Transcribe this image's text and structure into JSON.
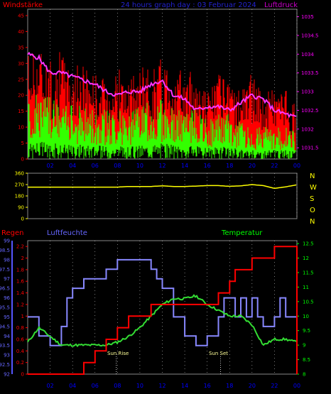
{
  "header": {
    "left_label": "Windstärke",
    "title": "24 hours graph day : 03 Februar 2024",
    "right_label": "Luftdruck"
  },
  "lower": {
    "left_label": "Regen",
    "mid_label": "Luftfeuchte",
    "right_label": "Temperatur",
    "sunrise_label": "Sun Rise",
    "sunset_label": "Sun Set"
  },
  "colors": {
    "wind_gust": "#ff0000",
    "wind_avg": "#33ff00",
    "pressure": "#ff33ff",
    "direction": "#ffff00",
    "rain": "#ff0000",
    "humidity": "#8888ff",
    "temperature": "#33dd33",
    "axis": "#888888",
    "grid": "#cccccc",
    "title": "#2222cc",
    "left_label": "#ff0000",
    "right_label": "#cc00cc",
    "compass_label": "#ffff00",
    "temp_axis_label": "#00ff00",
    "humidity_label": "#6666ff"
  },
  "chart_data": [
    {
      "type": "line",
      "xlabel": "",
      "ylabel": "Windstärke",
      "x_ticks": [
        "02",
        "04",
        "06",
        "08",
        "10",
        "12",
        "14",
        "16",
        "18",
        "20",
        "22",
        "00"
      ],
      "y_left_ticks": [
        "0",
        "5",
        "10",
        "15",
        "20",
        "25",
        "30",
        "35",
        "40",
        "45"
      ],
      "ylim": [
        0,
        47
      ],
      "y_right_ticks": [
        "1031.5",
        "1032",
        "1032.5",
        "1033",
        "1033.5",
        "1034",
        "1034.5",
        "1035"
      ],
      "y2lim": [
        1031.2,
        1035.2
      ],
      "x_hours": [
        0,
        1,
        2,
        3,
        4,
        5,
        6,
        7,
        8,
        9,
        10,
        11,
        12,
        13,
        14,
        15,
        16,
        17,
        18,
        19,
        20,
        21,
        22,
        23,
        24
      ],
      "series": [
        {
          "name": "Windstärke",
          "values": [
            30,
            32,
            27,
            30,
            25,
            27,
            24,
            22,
            26,
            21,
            26,
            25,
            29,
            27,
            23,
            25,
            19,
            24,
            20,
            20,
            24,
            18,
            21,
            19,
            14
          ]
        },
        {
          "name": "",
          "values": [
            14,
            16,
            15,
            14,
            13,
            13,
            13,
            12,
            12,
            11,
            13,
            14,
            15,
            13,
            12,
            12,
            10,
            11,
            11,
            9,
            8,
            8,
            8,
            8,
            7
          ]
        },
        {
          "name": "Luftdruck",
          "values": [
            1034.0,
            1033.9,
            1033.5,
            1033.5,
            1033.4,
            1033.3,
            1033.2,
            1033.0,
            1032.9,
            1033.0,
            1033.0,
            1033.2,
            1033.3,
            1032.9,
            1032.8,
            1032.5,
            1032.6,
            1032.6,
            1032.5,
            1032.7,
            1032.9,
            1032.8,
            1032.5,
            1032.4,
            1032.3
          ]
        }
      ]
    },
    {
      "type": "line",
      "y_left_ticks": [
        "0",
        "90",
        "180",
        "270",
        "360"
      ],
      "ylim": [
        0,
        360
      ],
      "compass_ticks": [
        "N",
        "W",
        "S",
        "O",
        "N"
      ],
      "x_hours": [
        0,
        1,
        2,
        3,
        4,
        5,
        6,
        7,
        8,
        9,
        10,
        11,
        12,
        13,
        14,
        15,
        16,
        17,
        18,
        19,
        20,
        21,
        22,
        23,
        24
      ],
      "series": [
        {
          "name": "",
          "values": [
            250,
            250,
            250,
            250,
            250,
            250,
            250,
            250,
            250,
            255,
            255,
            255,
            260,
            255,
            255,
            258,
            262,
            262,
            256,
            260,
            270,
            262,
            240,
            252,
            268
          ]
        }
      ]
    },
    {
      "type": "line",
      "x_ticks": [
        "02",
        "04",
        "06",
        "08",
        "10",
        "12",
        "14",
        "16",
        "18",
        "20",
        "22",
        "00"
      ],
      "rain_ticks": [
        "0",
        "0.2",
        "0.4",
        "0.6",
        "0.8",
        "1",
        "1.2",
        "1.4",
        "1.6",
        "1.8",
        "2",
        "2.2"
      ],
      "rain_lim": [
        0,
        2.3
      ],
      "humidity_ticks": [
        "92",
        "92.5",
        "93",
        "93.5",
        "94",
        "94.5",
        "95",
        "95.5",
        "96",
        "96.5",
        "97",
        "97.5",
        "98",
        "98.5",
        "99"
      ],
      "humidity_lim": [
        92,
        99
      ],
      "temp_ticks": [
        "8",
        "8.5",
        "9",
        "9.5",
        "10",
        "10.5",
        "11",
        "11.5",
        "12",
        "12.5"
      ],
      "temp_lim": [
        8,
        12.6
      ],
      "series": [
        {
          "name": "Regen",
          "x": [
            0,
            4,
            5,
            6,
            7,
            8,
            9,
            9.5,
            10,
            11,
            12,
            13,
            14,
            15,
            16,
            17,
            18,
            18.5,
            19,
            20,
            21,
            22,
            23,
            24
          ],
          "values": [
            0,
            0,
            0.2,
            0.4,
            0.6,
            0.8,
            1.0,
            1.0,
            1.0,
            1.2,
            1.2,
            1.2,
            1.2,
            1.2,
            1.2,
            1.4,
            1.6,
            1.8,
            1.8,
            2.0,
            2.0,
            2.2,
            2.2,
            2.2
          ]
        },
        {
          "name": "Luftfeuchte",
          "x": [
            0,
            1,
            2,
            3,
            3.5,
            4,
            5,
            6,
            7,
            8,
            9,
            10,
            11,
            11.5,
            12,
            13,
            14,
            15,
            16,
            17,
            17.5,
            18,
            18.5,
            19,
            19.5,
            20,
            20.5,
            21,
            22,
            22.5,
            23,
            23.5
          ],
          "values": [
            95,
            94,
            93.5,
            94.5,
            96,
            96.5,
            97,
            97,
            97.5,
            98,
            98,
            98,
            97.5,
            97,
            96.5,
            95,
            94,
            93.5,
            94,
            95,
            96,
            96,
            95,
            96,
            95,
            96,
            95,
            94.5,
            95,
            96,
            95,
            95
          ]
        },
        {
          "name": "Temperatur",
          "x": [
            0,
            1,
            2,
            3,
            4,
            5,
            6,
            7,
            8,
            9,
            10,
            11,
            12,
            13,
            14,
            15,
            16,
            17,
            18,
            19,
            20,
            21,
            22,
            23,
            24
          ],
          "values": [
            9.1,
            9.6,
            9.3,
            9.0,
            9.0,
            9.0,
            9.0,
            9.0,
            9.1,
            9.3,
            9.6,
            10.0,
            10.4,
            10.6,
            10.6,
            10.7,
            10.4,
            10.2,
            10.0,
            10.0,
            9.7,
            9.0,
            9.2,
            9.2,
            9.1
          ]
        }
      ]
    }
  ]
}
